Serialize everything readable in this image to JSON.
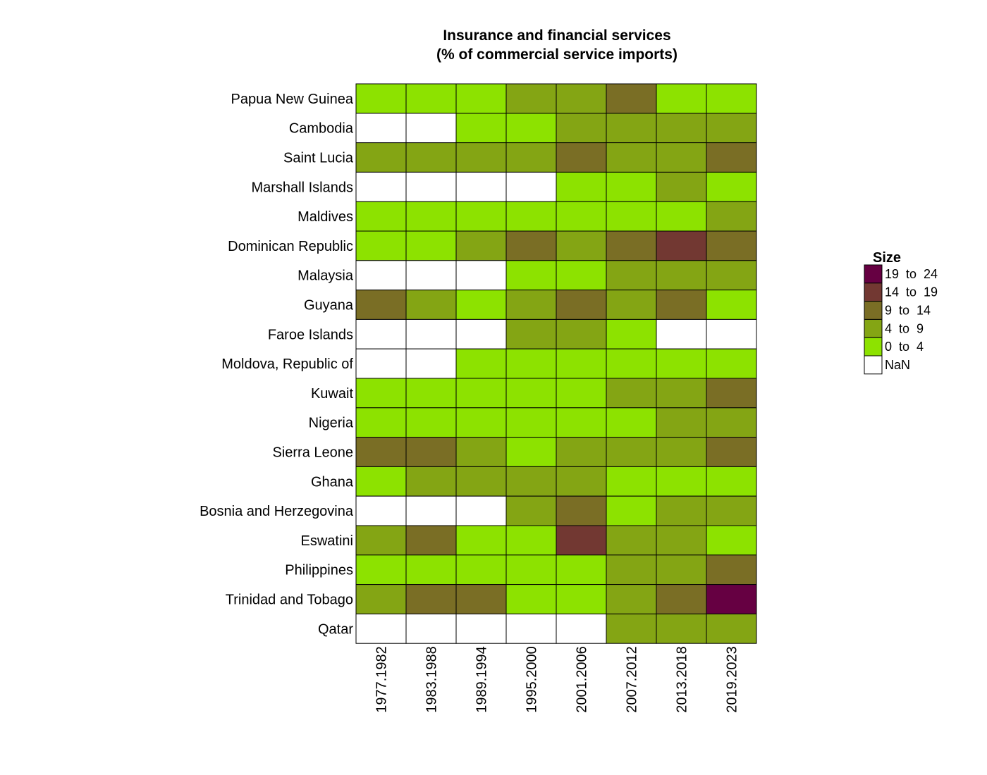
{
  "chart_data": {
    "type": "heatmap",
    "title": "Insurance and financial services",
    "subtitle": "(% of commercial service imports)",
    "columns": [
      "1977.1982",
      "1983.1988",
      "1989.1994",
      "1995.2000",
      "2001.2006",
      "2007.2012",
      "2013.2018",
      "2019.2023"
    ],
    "rows": [
      "Papua New Guinea",
      "Cambodia",
      "Saint Lucia",
      "Marshall Islands",
      "Maldives",
      "Dominican Republic",
      "Malaysia",
      "Guyana",
      "Faroe Islands",
      "Moldova, Republic of",
      "Kuwait",
      "Nigeria",
      "Sierra Leone",
      "Ghana",
      "Bosnia and Herzegovina",
      "Eswatini",
      "Philippines",
      "Trinidad and Tobago",
      "Qatar"
    ],
    "bins": [
      [
        1,
        1,
        1,
        2,
        2,
        3,
        1,
        1
      ],
      [
        0,
        0,
        1,
        1,
        2,
        2,
        2,
        2
      ],
      [
        2,
        2,
        2,
        2,
        3,
        2,
        2,
        3
      ],
      [
        0,
        0,
        0,
        0,
        1,
        1,
        2,
        1
      ],
      [
        1,
        1,
        1,
        1,
        1,
        1,
        1,
        2
      ],
      [
        1,
        1,
        2,
        3,
        2,
        3,
        4,
        3
      ],
      [
        0,
        0,
        0,
        1,
        1,
        2,
        2,
        2
      ],
      [
        3,
        2,
        1,
        2,
        3,
        2,
        3,
        1
      ],
      [
        0,
        0,
        0,
        2,
        2,
        1,
        0,
        0
      ],
      [
        0,
        0,
        1,
        1,
        1,
        1,
        1,
        1
      ],
      [
        1,
        1,
        1,
        1,
        1,
        2,
        2,
        3
      ],
      [
        1,
        1,
        1,
        1,
        1,
        1,
        2,
        2
      ],
      [
        3,
        3,
        2,
        1,
        2,
        2,
        2,
        3
      ],
      [
        1,
        2,
        2,
        2,
        2,
        1,
        1,
        1
      ],
      [
        0,
        0,
        0,
        2,
        3,
        1,
        2,
        2
      ],
      [
        2,
        3,
        1,
        1,
        4,
        2,
        2,
        1
      ],
      [
        1,
        1,
        1,
        1,
        1,
        2,
        2,
        3
      ],
      [
        2,
        3,
        3,
        1,
        1,
        2,
        3,
        5
      ],
      [
        0,
        0,
        0,
        0,
        0,
        2,
        2,
        2
      ]
    ],
    "legend": {
      "title": "Size",
      "placement": "right",
      "items": [
        {
          "label": "19  to  24",
          "bin": 5,
          "color": "#660042"
        },
        {
          "label": "14  to  19",
          "bin": 4,
          "color": "#723832"
        },
        {
          "label": "9  to  14",
          "bin": 3,
          "color": "#7a6e25"
        },
        {
          "label": "4  to  9",
          "bin": 2,
          "color": "#84a514"
        },
        {
          "label": "0  to  4",
          "bin": 1,
          "color": "#8de200"
        },
        {
          "label": "NaN",
          "bin": 0,
          "color": "#ffffff"
        }
      ]
    },
    "colors": {
      "0": "#ffffff",
      "1": "#8de200",
      "2": "#84a514",
      "3": "#7a6e25",
      "4": "#723832",
      "5": "#660042"
    },
    "grid": false
  }
}
